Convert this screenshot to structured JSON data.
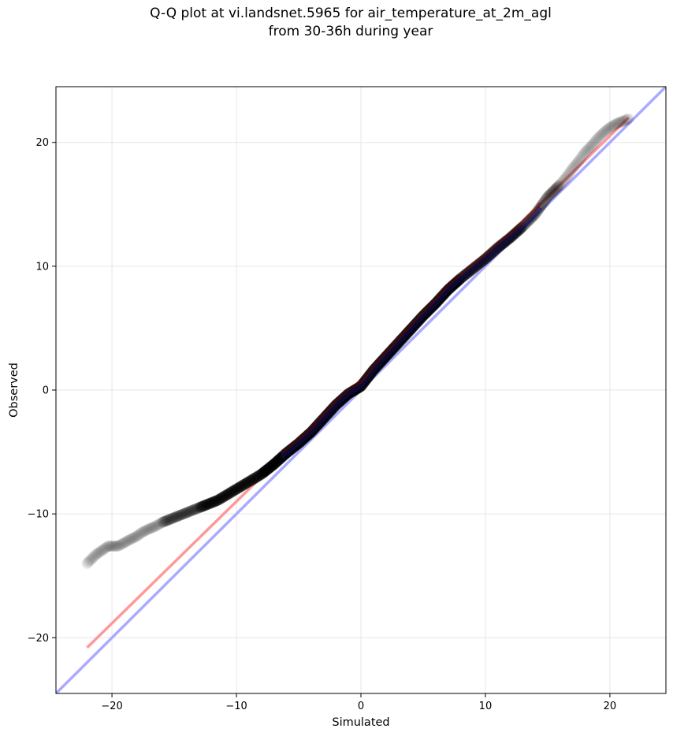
{
  "title_line1": "Q-Q plot at vi.landsnet.5965 for air_temperature_at_2m_agl",
  "title_line2": "from 30-36h during year",
  "chart_data": {
    "type": "scatter",
    "title": "Q-Q plot at vi.landsnet.5965 for air_temperature_at_2m_agl\nfrom 30-36h during year",
    "xlabel": "Simulated",
    "ylabel": "Observed",
    "xlim": [
      -24.5,
      24.5
    ],
    "ylim": [
      -24.5,
      24.5
    ],
    "xticks": [
      -20,
      -10,
      0,
      10,
      20
    ],
    "yticks": [
      -20,
      -10,
      0,
      10,
      20
    ],
    "xtick_labels": [
      "−20",
      "−10",
      "0",
      "10",
      "20"
    ],
    "ytick_labels": [
      "−20",
      "−10",
      "0",
      "10",
      "20"
    ],
    "grid": true,
    "identity_line": {
      "x": [
        -24.5,
        24.5
      ],
      "y": [
        -24.5,
        24.5
      ],
      "color": "#aaaaff"
    },
    "fit_line": {
      "x": [
        -22,
        21.5
      ],
      "y": [
        -20.8,
        22
      ],
      "color": "#ff9999"
    },
    "quantile_curve": {
      "x": [
        -22,
        -21.3,
        -20.3,
        -19.5,
        -18.6,
        -18,
        -17.6,
        -17,
        -16.5,
        -16,
        -15.5,
        -15,
        -14.5,
        -14,
        -13.5,
        -13,
        -12.5,
        -12,
        -11.5,
        -11,
        -10.5,
        -10,
        -9.5,
        -9,
        -8,
        -7,
        -6,
        -5,
        -4,
        -3,
        -2,
        -1,
        0,
        1,
        2,
        3,
        4,
        5,
        6,
        7,
        8,
        9,
        10,
        11,
        12,
        13,
        14,
        14.5,
        15,
        15.5,
        16,
        16.5,
        17,
        17.5,
        18,
        18.5,
        19,
        19.5,
        20,
        20.5,
        21,
        21.5
      ],
      "y": [
        -14,
        -13.3,
        -12.6,
        -12.6,
        -12.1,
        -11.8,
        -11.5,
        -11.2,
        -11.0,
        -10.7,
        -10.5,
        -10.3,
        -10.1,
        -9.9,
        -9.7,
        -9.5,
        -9.3,
        -9.1,
        -8.9,
        -8.6,
        -8.3,
        -8.0,
        -7.7,
        -7.4,
        -6.8,
        -6.0,
        -5.1,
        -4.3,
        -3.4,
        -2.3,
        -1.2,
        -0.3,
        0.3,
        1.6,
        2.7,
        3.8,
        4.9,
        6.0,
        7.0,
        8.1,
        9.0,
        9.8,
        10.6,
        11.5,
        12.3,
        13.2,
        14.2,
        14.9,
        15.6,
        16.1,
        16.6,
        17.2,
        17.9,
        18.5,
        19.2,
        19.7,
        20.3,
        20.8,
        21.2,
        21.5,
        21.7,
        21.9
      ]
    }
  }
}
